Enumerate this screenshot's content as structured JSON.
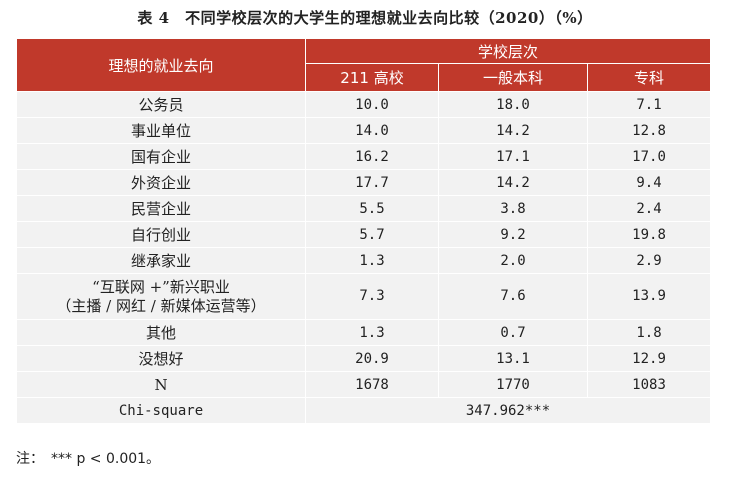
{
  "title": "表 4　不同学校层次的大学生的理想就业去向比较（2020）（%）",
  "header": {
    "row_label": "理想的就业去向",
    "group_label": "学校层次",
    "columns": [
      "211 高校",
      "一般本科",
      "专科"
    ]
  },
  "rows": [
    {
      "label": "公务员",
      "values": [
        "10.0",
        "18.0",
        "7.1"
      ]
    },
    {
      "label": "事业单位",
      "values": [
        "14.0",
        "14.2",
        "12.8"
      ]
    },
    {
      "label": "国有企业",
      "values": [
        "16.2",
        "17.1",
        "17.0"
      ]
    },
    {
      "label": "外资企业",
      "values": [
        "17.7",
        "14.2",
        "9.4"
      ]
    },
    {
      "label": "民营企业",
      "values": [
        "5.5",
        "3.8",
        "2.4"
      ]
    },
    {
      "label": "自行创业",
      "values": [
        "5.7",
        "9.2",
        "19.8"
      ]
    },
    {
      "label": "继承家业",
      "values": [
        "1.3",
        "2.0",
        "2.9"
      ]
    },
    {
      "label": "“互联网 +”新兴职业",
      "label2": "（主播 / 网红 / 新媒体运营等）",
      "values": [
        "7.3",
        "7.6",
        "13.9"
      ]
    },
    {
      "label": "其他",
      "values": [
        "1.3",
        "0.7",
        "1.8"
      ]
    },
    {
      "label": "没想好",
      "values": [
        "20.9",
        "13.1",
        "12.9"
      ]
    },
    {
      "label": "N",
      "values": [
        "1678",
        "1770",
        "1083"
      ]
    }
  ],
  "chi_square": {
    "label": "Chi-square",
    "value": "347.962***"
  },
  "note": "注：　*** p < 0.001。"
}
